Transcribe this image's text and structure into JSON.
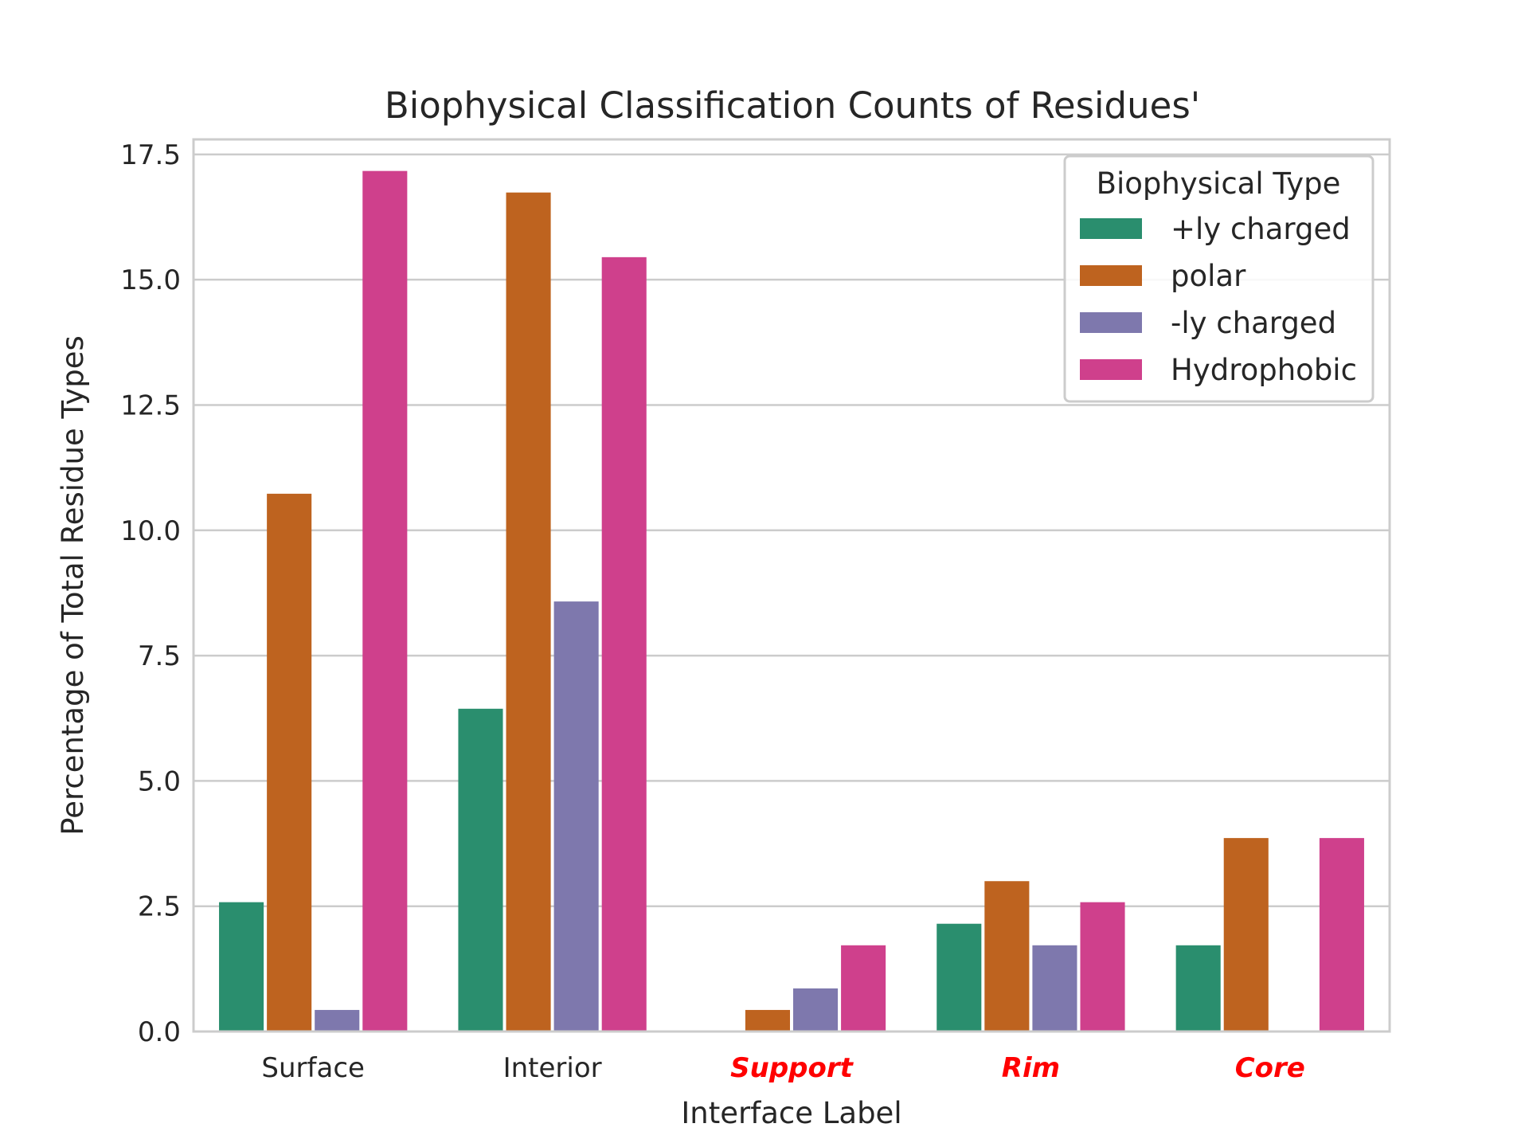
{
  "chart_data": {
    "type": "bar",
    "title": "Biophysical Classification Counts of Residues'",
    "xlabel": "Interface Label",
    "ylabel": "Percentage of Total Residue Types",
    "categories": [
      "Surface",
      "Interior",
      "Support",
      "Rim",
      "Core"
    ],
    "category_styles": [
      {
        "color": "#262626",
        "bold": false,
        "italic": false
      },
      {
        "color": "#262626",
        "bold": false,
        "italic": false
      },
      {
        "color": "#ff0000",
        "bold": true,
        "italic": true
      },
      {
        "color": "#ff0000",
        "bold": true,
        "italic": true
      },
      {
        "color": "#ff0000",
        "bold": true,
        "italic": true
      }
    ],
    "series": [
      {
        "name": "+ly charged",
        "color": "#2a8e6e",
        "values": [
          2.58,
          6.44,
          0.0,
          2.15,
          1.72
        ]
      },
      {
        "name": "polar",
        "color": "#be631f",
        "values": [
          10.73,
          16.74,
          0.43,
          3.0,
          3.86
        ]
      },
      {
        "name": "-ly charged",
        "color": "#7e78ad",
        "values": [
          0.43,
          8.58,
          0.86,
          1.72,
          0.0
        ]
      },
      {
        "name": "Hydrophobic",
        "color": "#cf408c",
        "values": [
          17.17,
          15.45,
          1.72,
          2.58,
          3.86
        ]
      }
    ],
    "ylim": [
      0,
      17.8
    ],
    "yticks": [
      "0.0",
      "2.5",
      "5.0",
      "7.5",
      "10.0",
      "12.5",
      "15.0",
      "17.5"
    ],
    "legend_title": "Biophysical Type",
    "legend_position": "top-right",
    "grid": true
  }
}
